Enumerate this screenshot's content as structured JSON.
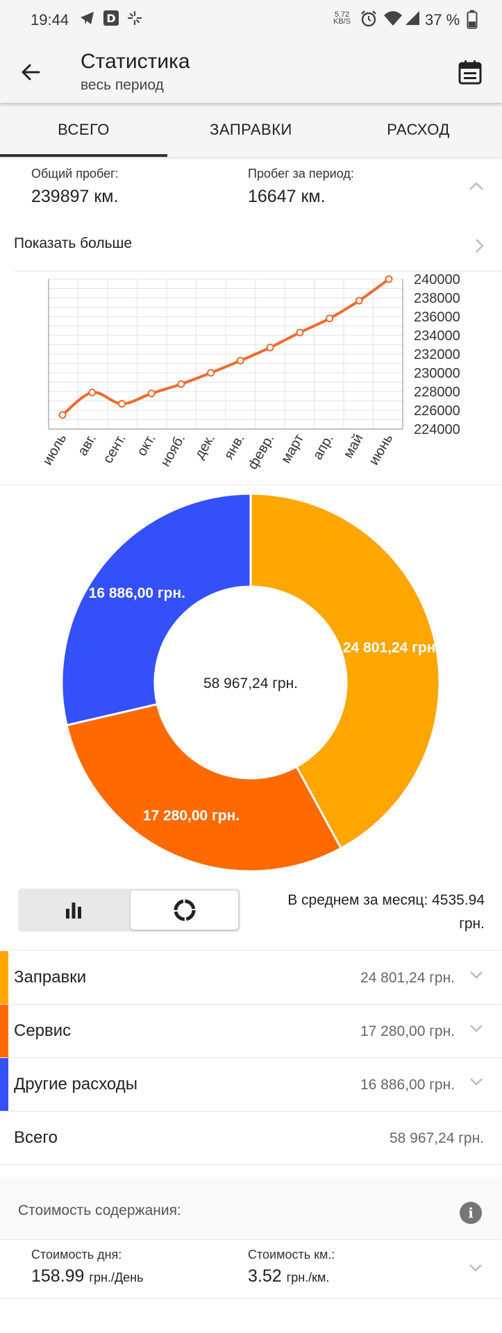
{
  "status_bar": {
    "time": "19:44",
    "net_speed_value": "5.72",
    "net_speed_unit": "KB/S",
    "battery": "37 %"
  },
  "app_bar": {
    "title": "Статистика",
    "subtitle": "весь период"
  },
  "tabs": [
    {
      "label": "ВСЕГО",
      "active": true
    },
    {
      "label": "ЗАПРАВКИ",
      "active": false
    },
    {
      "label": "РАСХОД",
      "active": false
    }
  ],
  "mileage": {
    "total_label": "Общий пробег:",
    "total_value": "239897 км.",
    "period_label": "Пробег за период:",
    "period_value": "16647 км."
  },
  "show_more_label": "Показать больше",
  "chart_data": [
    {
      "type": "line",
      "title": "",
      "categories": [
        "июль",
        "авг.",
        "сент.",
        "окт.",
        "нояб.",
        "дек.",
        "янв.",
        "февр.",
        "март",
        "апр.",
        "май",
        "июнь"
      ],
      "series": [
        {
          "name": "Пробег",
          "values": [
            225500,
            227900,
            226700,
            227800,
            228800,
            230000,
            231300,
            232700,
            234300,
            235800,
            237700,
            240000
          ]
        }
      ],
      "ylim": [
        224000,
        240000
      ],
      "yticks": [
        240000,
        238000,
        236000,
        234000,
        232000,
        230000,
        228000,
        226000,
        224000
      ],
      "grid": true,
      "color": "#ee6b2f"
    },
    {
      "type": "pie",
      "donut": true,
      "center_label": "58 967,24 грн.",
      "slices": [
        {
          "label": "Заправки",
          "value": 24801.24,
          "text": "24 801,24 грн.",
          "color": "#ffa600"
        },
        {
          "label": "Сервис",
          "value": 17280.0,
          "text": "17 280,00 грн.",
          "color": "#ff6a00"
        },
        {
          "label": "Другие расходы",
          "value": 16886.0,
          "text": "16 886,00 грн.",
          "color": "#3350fa"
        }
      ]
    }
  ],
  "average": {
    "text": "В среднем за месяц: 4535.94 грн."
  },
  "categories": [
    {
      "name": "Заправки",
      "amount": "24 801,24 грн.",
      "color": "#ffa600"
    },
    {
      "name": "Сервис",
      "amount": "17 280,00 грн.",
      "color": "#ff6a00"
    },
    {
      "name": "Другие расходы",
      "amount": "16 886,00 грн.",
      "color": "#3350fa"
    }
  ],
  "total": {
    "label": "Всего",
    "amount": "58 967,24 грн."
  },
  "cost": {
    "header": "Стоимость содержания:",
    "info_glyph": "i",
    "day_label": "Стоимость дня:",
    "day_value": "158.99",
    "day_unit": "грн./День",
    "km_label": "Стоимость км.:",
    "km_value": "3.52",
    "km_unit": "грн./км."
  }
}
